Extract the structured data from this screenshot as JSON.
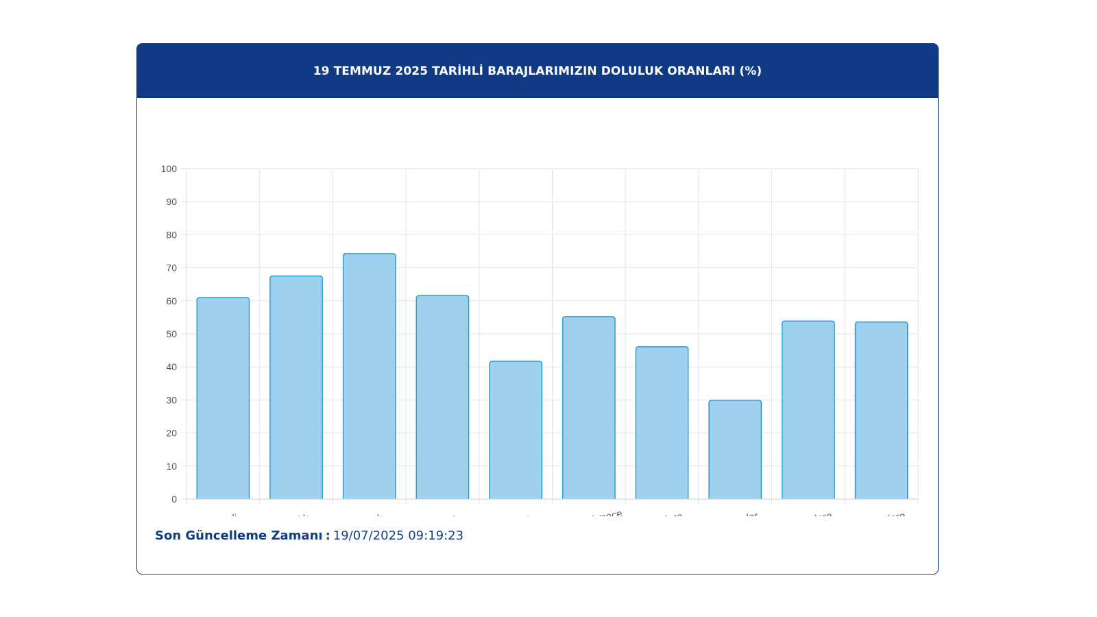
{
  "header": {
    "title": "19 TEMMUZ 2025 TARİHLİ BARAJLARIMIZIN DOLULUK ORANLARI (%)"
  },
  "footer": {
    "label": "Son Güncelleme Zamanı",
    "separator": ":",
    "value": "19/07/2025 09:19:23"
  },
  "colors": {
    "header_bg": "#0f3b84",
    "bar_fill": "#9fd0ee",
    "bar_stroke": "#2a9fd6",
    "grid": "#e2e2e2",
    "text_dark": "#123e84"
  },
  "chart_data": {
    "type": "bar",
    "categories": [
      "Ömerli",
      "Darlık",
      "Elmalı",
      "Terkos",
      "Alibey",
      "Büyükçekmece",
      "Sazlıdere",
      "Istrancalar",
      "Kazandere",
      "Pabuçdere"
    ],
    "values": [
      61,
      67.5,
      74.3,
      61.6,
      41.7,
      55.2,
      46.1,
      29.9,
      53.9,
      53.6
    ],
    "ylim": [
      0,
      100
    ],
    "yticks": [
      0,
      10,
      20,
      30,
      40,
      50,
      60,
      70,
      80,
      90,
      100
    ],
    "xlabel": "",
    "ylabel": "",
    "grid": true,
    "legend": "none"
  }
}
